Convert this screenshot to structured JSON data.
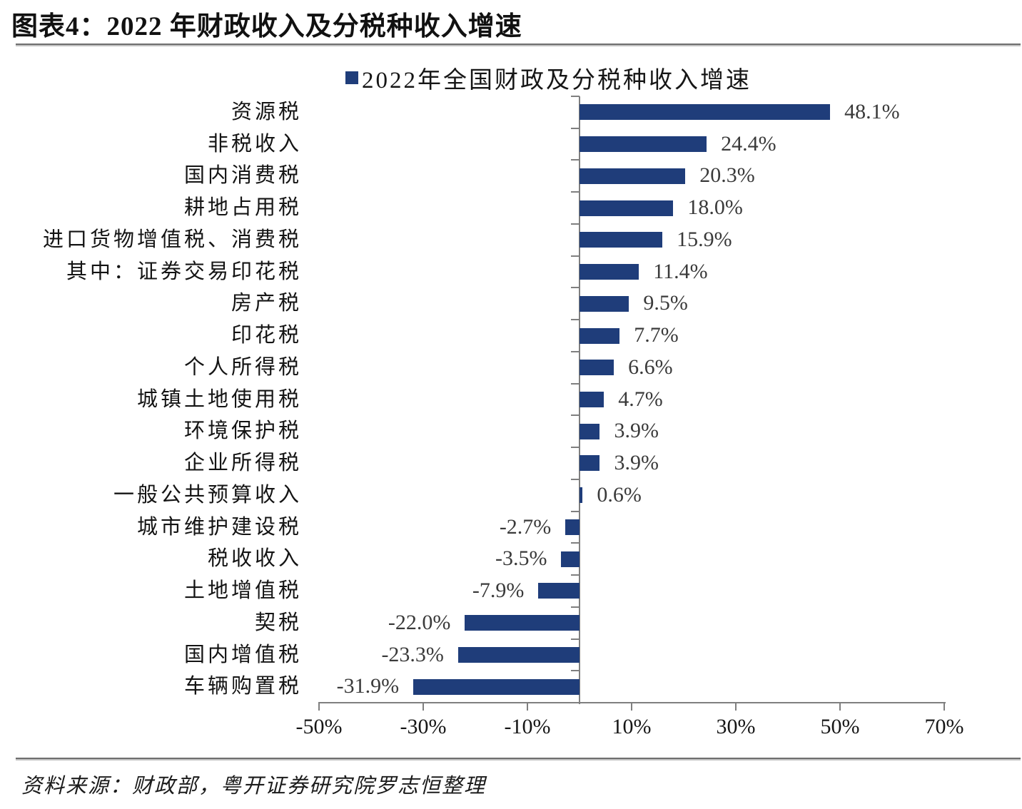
{
  "figure": {
    "title": "图表4：2022 年财政收入及分税种收入增速",
    "source": "资料来源：财政部，粤开证券研究院罗志恒整理"
  },
  "legend": {
    "label": "2022年全国财政及分税种收入增速"
  },
  "chart_data": {
    "type": "bar",
    "orientation": "horizontal",
    "title": "2022年全国财政及分税种收入增速",
    "categories": [
      "资源税",
      "非税收入",
      "国内消费税",
      "耕地占用税",
      "进口货物增值税、消费税",
      "其中：证券交易印花税",
      "房产税",
      "印花税",
      "个人所得税",
      "城镇土地使用税",
      "环境保护税",
      "企业所得税",
      "一般公共预算收入",
      "城市维护建设税",
      "税收收入",
      "土地增值税",
      "契税",
      "国内增值税",
      "车辆购置税"
    ],
    "values": [
      48.1,
      24.4,
      20.3,
      18.0,
      15.9,
      11.4,
      9.5,
      7.7,
      6.6,
      4.7,
      3.9,
      3.9,
      0.6,
      -2.7,
      -3.5,
      -7.9,
      -22.0,
      -23.3,
      -31.9
    ],
    "value_labels": [
      "48.1%",
      "24.4%",
      "20.3%",
      "18.0%",
      "15.9%",
      "11.4%",
      "9.5%",
      "7.7%",
      "6.6%",
      "4.7%",
      "3.9%",
      "3.9%",
      "0.6%",
      "-2.7%",
      "-3.5%",
      "-7.9%",
      "-22.0%",
      "-23.3%",
      "-31.9%"
    ],
    "xlim": [
      -50,
      70
    ],
    "x_ticks": [
      {
        "value": -50,
        "label": "-50%"
      },
      {
        "value": -30,
        "label": "-30%"
      },
      {
        "value": -10,
        "label": "-10%"
      },
      {
        "value": 10,
        "label": "10%"
      },
      {
        "value": 30,
        "label": "30%"
      },
      {
        "value": 50,
        "label": "50%"
      },
      {
        "value": 70,
        "label": "70%"
      }
    ],
    "bar_color": "#1F3D7A",
    "axis_color": "#7F7F7F",
    "grid": false,
    "legend_position": "top"
  }
}
